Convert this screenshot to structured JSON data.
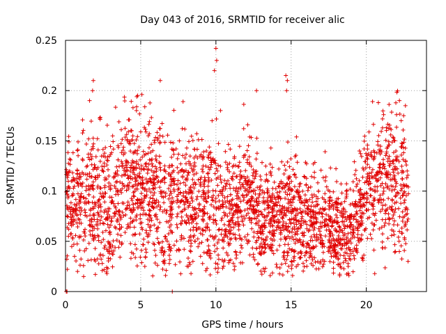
{
  "chart_data": {
    "type": "scatter",
    "title": "Day 043 of 2016, SRMTID for receiver alic",
    "xlabel": "GPS time / hours",
    "ylabel": "SRMTID / TECUs",
    "xlim": [
      0,
      24
    ],
    "ylim": [
      0,
      0.25
    ],
    "xticks": [
      0,
      5,
      10,
      15,
      20
    ],
    "xtick_labels": [
      "0",
      "5",
      "10",
      "15",
      "20"
    ],
    "yticks": [
      0,
      0.05,
      0.1,
      0.15,
      0.2,
      0.25
    ],
    "ytick_labels": [
      "0",
      "0.05",
      "0.1",
      "0.15",
      "0.2",
      "0.25"
    ],
    "grid": true,
    "marker": "plus",
    "color": "#e00000",
    "point_count_estimate": 3000,
    "envelope_description": "hourly approximate median and spread of SRMTID",
    "envelope": [
      {
        "x": 0.0,
        "median": 0.09,
        "low": 0.045,
        "high": 0.125
      },
      {
        "x": 1.0,
        "median": 0.085,
        "low": 0.04,
        "high": 0.13
      },
      {
        "x": 2.0,
        "median": 0.1,
        "low": 0.045,
        "high": 0.16
      },
      {
        "x": 3.0,
        "median": 0.075,
        "low": 0.03,
        "high": 0.14
      },
      {
        "x": 4.0,
        "median": 0.11,
        "low": 0.055,
        "high": 0.165
      },
      {
        "x": 5.0,
        "median": 0.1,
        "low": 0.05,
        "high": 0.17
      },
      {
        "x": 6.0,
        "median": 0.1,
        "low": 0.04,
        "high": 0.165
      },
      {
        "x": 7.0,
        "median": 0.08,
        "low": 0.035,
        "high": 0.14
      },
      {
        "x": 8.0,
        "median": 0.095,
        "low": 0.045,
        "high": 0.15
      },
      {
        "x": 9.0,
        "median": 0.08,
        "low": 0.04,
        "high": 0.13
      },
      {
        "x": 10.0,
        "median": 0.09,
        "low": 0.04,
        "high": 0.16
      },
      {
        "x": 11.0,
        "median": 0.075,
        "low": 0.035,
        "high": 0.12
      },
      {
        "x": 12.0,
        "median": 0.105,
        "low": 0.055,
        "high": 0.15
      },
      {
        "x": 13.0,
        "median": 0.065,
        "low": 0.03,
        "high": 0.12
      },
      {
        "x": 14.0,
        "median": 0.075,
        "low": 0.035,
        "high": 0.12
      },
      {
        "x": 15.0,
        "median": 0.08,
        "low": 0.04,
        "high": 0.135
      },
      {
        "x": 16.0,
        "median": 0.07,
        "low": 0.035,
        "high": 0.12
      },
      {
        "x": 17.0,
        "median": 0.07,
        "low": 0.035,
        "high": 0.11
      },
      {
        "x": 18.0,
        "median": 0.06,
        "low": 0.03,
        "high": 0.1
      },
      {
        "x": 19.0,
        "median": 0.055,
        "low": 0.025,
        "high": 0.095
      },
      {
        "x": 20.0,
        "median": 0.1,
        "low": 0.05,
        "high": 0.14
      },
      {
        "x": 21.0,
        "median": 0.11,
        "low": 0.06,
        "high": 0.165
      },
      {
        "x": 22.0,
        "median": 0.11,
        "low": 0.05,
        "high": 0.17
      },
      {
        "x": 22.8,
        "median": 0.1,
        "low": 0.06,
        "high": 0.16
      }
    ],
    "notable_points": [
      {
        "x": 0.05,
        "y": 0.0
      },
      {
        "x": 0.1,
        "y": 0.0
      },
      {
        "x": 0.8,
        "y": 0.02
      },
      {
        "x": 1.6,
        "y": 0.19
      },
      {
        "x": 1.8,
        "y": 0.2
      },
      {
        "x": 1.85,
        "y": 0.21
      },
      {
        "x": 4.8,
        "y": 0.195
      },
      {
        "x": 6.3,
        "y": 0.21
      },
      {
        "x": 6.9,
        "y": 0.028
      },
      {
        "x": 7.1,
        "y": 0.0
      },
      {
        "x": 9.9,
        "y": 0.22
      },
      {
        "x": 10.0,
        "y": 0.242
      },
      {
        "x": 10.05,
        "y": 0.23
      },
      {
        "x": 12.7,
        "y": 0.2
      },
      {
        "x": 14.65,
        "y": 0.215
      },
      {
        "x": 14.75,
        "y": 0.21
      },
      {
        "x": 14.7,
        "y": 0.2
      },
      {
        "x": 20.8,
        "y": 0.188
      },
      {
        "x": 22.2,
        "y": 0.19
      },
      {
        "x": 22.6,
        "y": 0.185
      }
    ]
  }
}
